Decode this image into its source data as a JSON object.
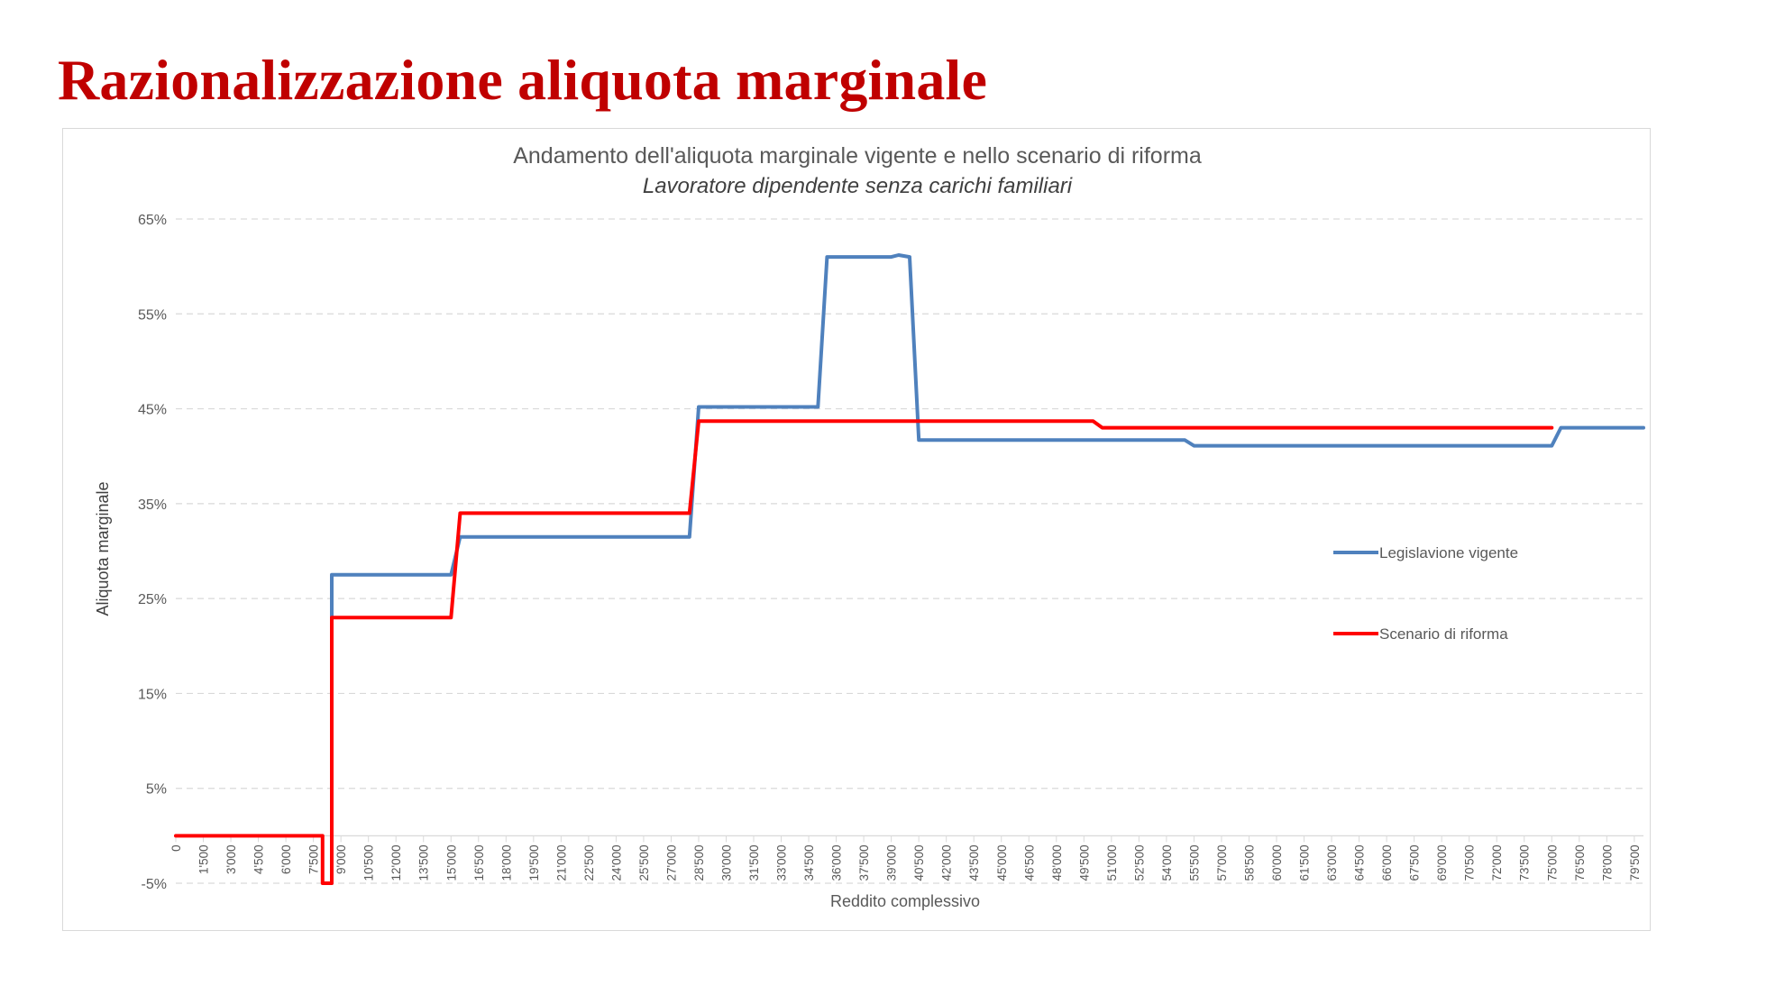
{
  "slide": {
    "title": "Razionalizzazione aliquota marginale"
  },
  "chart_data": {
    "type": "line",
    "title": "Andamento dell'aliquota marginale vigente e nello scenario di riforma",
    "subtitle": "Lavoratore dipendente senza carichi familiari",
    "xlabel": "Reddito complessivo",
    "ylabel": "Aliquota marginale",
    "x_tick_labels": [
      "0",
      "1'500",
      "3'000",
      "4'500",
      "6'000",
      "7'500",
      "9'000",
      "10'500",
      "12'000",
      "13'500",
      "15'000",
      "16'500",
      "18'000",
      "19'500",
      "21'000",
      "22'500",
      "24'000",
      "25'500",
      "27'000",
      "28'500",
      "30'000",
      "31'500",
      "33'000",
      "34'500",
      "36'000",
      "37'500",
      "39'000",
      "40'500",
      "42'000",
      "43'500",
      "45'000",
      "46'500",
      "48'000",
      "49'500",
      "51'000",
      "52'500",
      "54'000",
      "55'500",
      "57'000",
      "58'500",
      "60'000",
      "61'500",
      "63'000",
      "64'500",
      "66'000",
      "67'500",
      "69'000",
      "70'500",
      "72'000",
      "73'500",
      "75'000",
      "76'500",
      "78'000",
      "79'500"
    ],
    "y_tick_labels": [
      "-5%",
      "5%",
      "15%",
      "25%",
      "35%",
      "45%",
      "55%",
      "65%"
    ],
    "xlim": [
      0,
      80000
    ],
    "ylim": [
      -5,
      65
    ],
    "grid": true,
    "legend_position": "right",
    "series": [
      {
        "name": "Legislavione vigente",
        "color": "#4f81bd",
        "points": [
          [
            8500,
            -5
          ],
          [
            8500,
            27.5
          ],
          [
            15000,
            27.5
          ],
          [
            15500,
            31.5
          ],
          [
            28000,
            31.5
          ],
          [
            28500,
            45.2
          ],
          [
            35000,
            45.2
          ],
          [
            35500,
            61
          ],
          [
            39000,
            61
          ],
          [
            39400,
            61.2
          ],
          [
            40000,
            61
          ],
          [
            40500,
            41.7
          ],
          [
            55000,
            41.7
          ],
          [
            55500,
            41.1
          ],
          [
            75000,
            41.1
          ],
          [
            75500,
            43
          ],
          [
            80000,
            43
          ]
        ]
      },
      {
        "name": "Scenario di riforma",
        "color": "#ff0000",
        "points": [
          [
            0,
            0
          ],
          [
            8000,
            0
          ],
          [
            8000,
            -5
          ],
          [
            8500,
            -5
          ],
          [
            8500,
            23
          ],
          [
            15000,
            23
          ],
          [
            15500,
            34
          ],
          [
            28000,
            34
          ],
          [
            28500,
            43.7
          ],
          [
            50000,
            43.7
          ],
          [
            50500,
            43
          ],
          [
            75000,
            43
          ]
        ]
      }
    ]
  }
}
